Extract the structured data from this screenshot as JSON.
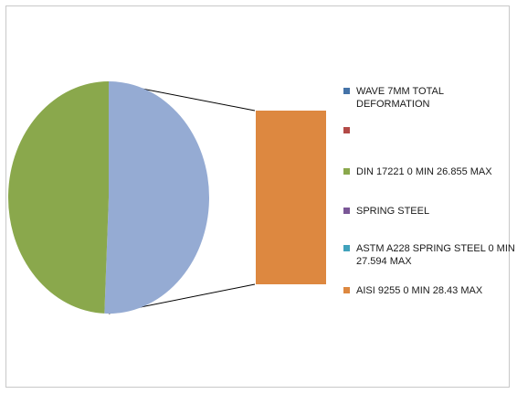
{
  "chart_data": {
    "type": "pie",
    "subtype": "pie-of-bar",
    "legend_placement": "right",
    "slices": [
      {
        "label": "DIN 17221 0 MIN 26.855 MAX",
        "value": 26.855,
        "color": "#8aa84c"
      },
      {
        "label": "ASTM A228 SPRING STEEL  0 MIN 27.594 MAX",
        "value": 27.594,
        "color": "#95abd3"
      }
    ],
    "bar": {
      "label": "AISI 9255 0 MIN  28.43 MAX",
      "value": 28.43,
      "color": "#dd8840"
    },
    "legend": [
      {
        "label": "WAVE 7MM TOTAL DEFORMATION",
        "color": "#4573a8"
      },
      {
        "label": "",
        "color": "#b34a47"
      },
      {
        "label": "DIN 17221 0 MIN 26.855 MAX",
        "color": "#8aa84c"
      },
      {
        "label": "SPRING STEEL",
        "color": "#7a5797"
      },
      {
        "label": "ASTM A228 SPRING STEEL  0 MIN 27.594 MAX",
        "color": "#41a2bc"
      },
      {
        "label": "AISI 9255 0 MIN  28.43 MAX",
        "color": "#dd8840"
      }
    ]
  }
}
